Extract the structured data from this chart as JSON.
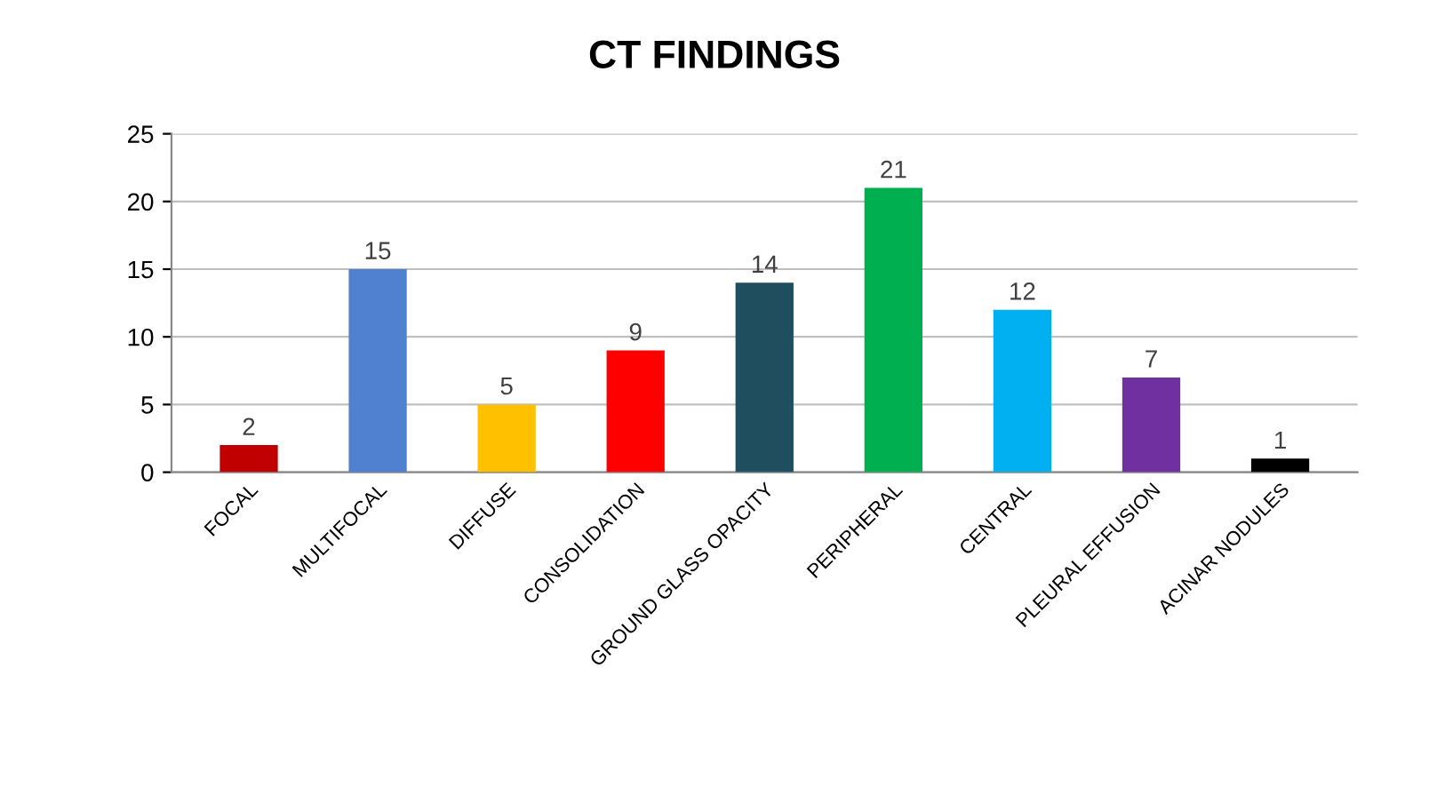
{
  "chart_data": {
    "type": "bar",
    "title": "CT FINDINGS",
    "categories": [
      "FOCAL",
      "MULTIFOCAL",
      "DIFFUSE",
      "CONSOLIDATION",
      "GROUND GLASS OPACITY",
      "PERIPHERAL",
      "CENTRAL",
      "PLEURAL EFFUSION",
      "ACINAR NODULES"
    ],
    "values": [
      2,
      15,
      5,
      9,
      14,
      21,
      12,
      7,
      1
    ],
    "colors": [
      "#c00000",
      "#4f81d0",
      "#ffc000",
      "#ff0000",
      "#1f4e5f",
      "#00b050",
      "#00b0f0",
      "#7030a0",
      "#000000"
    ],
    "ylim": [
      0,
      25
    ],
    "yticks": [
      0,
      5,
      10,
      15,
      20,
      25
    ],
    "grid": "y",
    "data_labels": true
  }
}
